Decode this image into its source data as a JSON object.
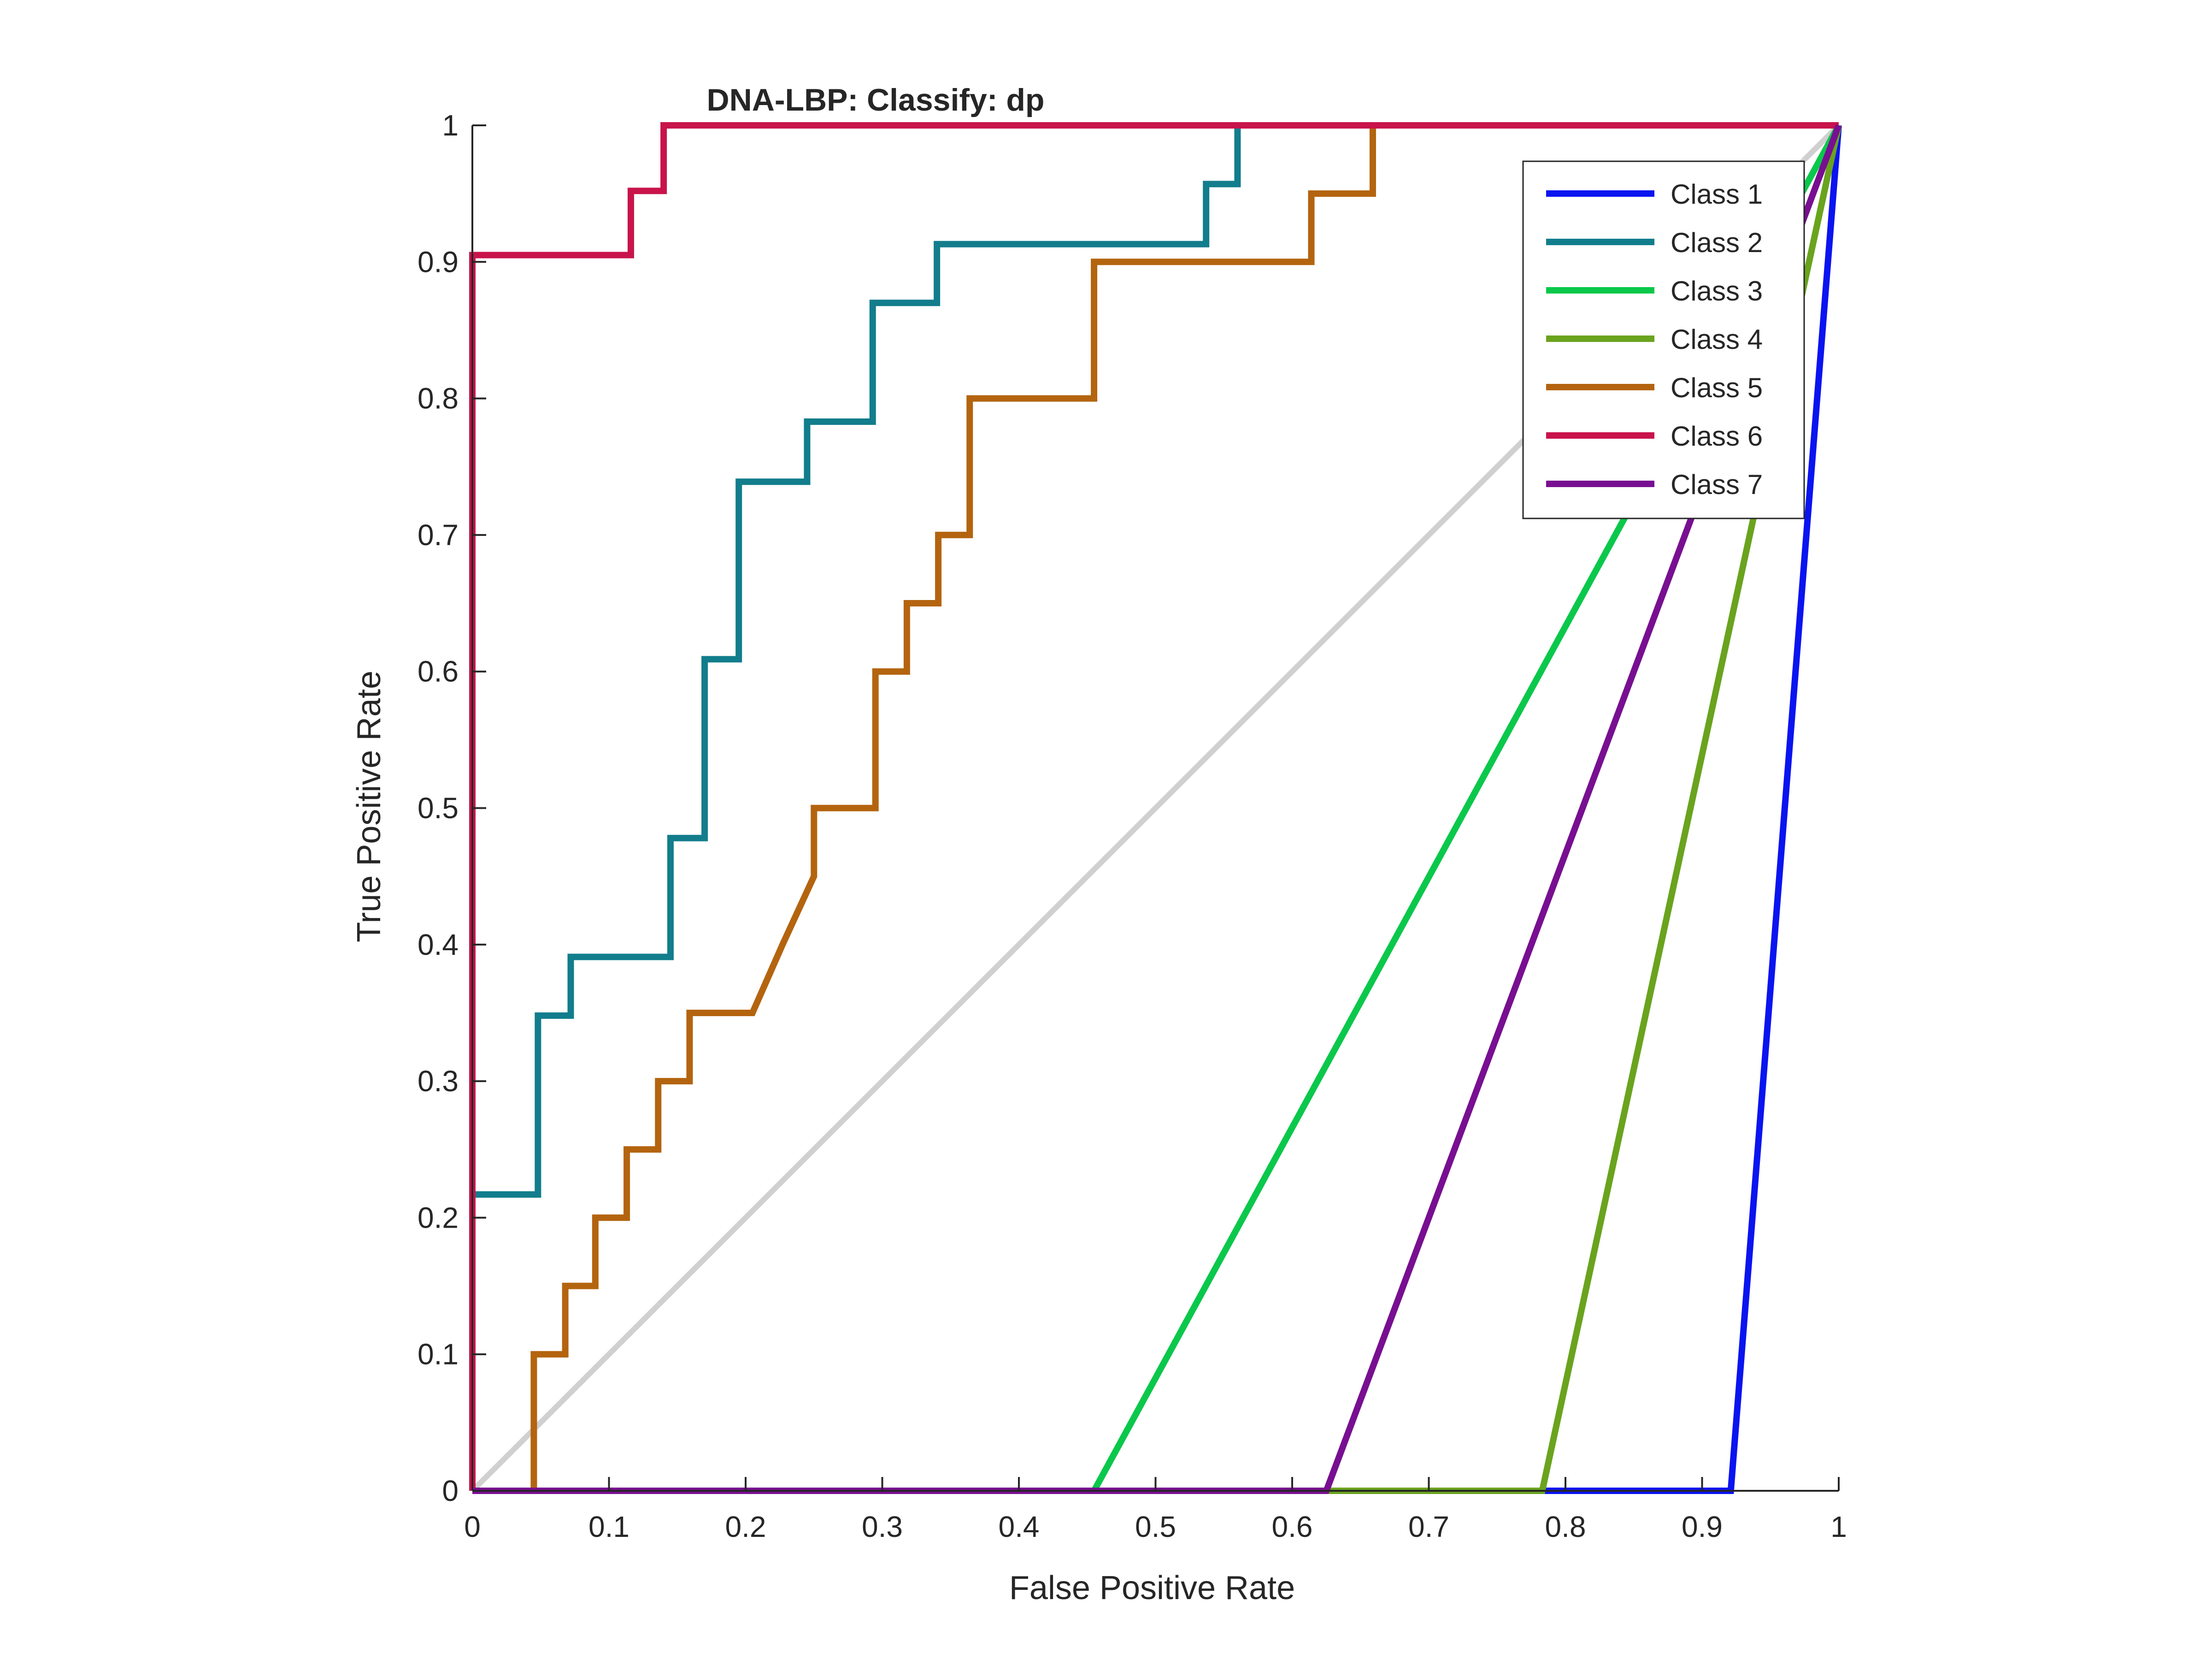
{
  "chart_data": {
    "type": "line",
    "title": "DNA-LBP: Classify: dp",
    "xlabel": "False Positive Rate",
    "ylabel": "True Positive Rate",
    "xlim": [
      0,
      1
    ],
    "ylim": [
      0,
      1
    ],
    "xticks": [
      "0",
      "0.1",
      "0.2",
      "0.3",
      "0.4",
      "0.5",
      "0.6",
      "0.7",
      "0.8",
      "0.9",
      "1"
    ],
    "yticks": [
      "0",
      "0.1",
      "0.2",
      "0.3",
      "0.4",
      "0.5",
      "0.6",
      "0.7",
      "0.8",
      "0.9",
      "1"
    ],
    "grid": false,
    "legend_position": "top-right",
    "reference_line": {
      "x": [
        0,
        1
      ],
      "y": [
        0,
        1
      ],
      "color": "#d0d0d0"
    },
    "series": [
      {
        "name": "Class 1",
        "color": "#0a14f0",
        "x": [
          0,
          0.921,
          1
        ],
        "y": [
          0,
          0,
          1
        ]
      },
      {
        "name": "Class 2",
        "color": "#127d8c",
        "x": [
          0,
          0.048,
          0.048,
          0.072,
          0.072,
          0.145,
          0.145,
          0.17,
          0.17,
          0.195,
          0.195,
          0.245,
          0.245,
          0.293,
          0.293,
          0.34,
          0.34,
          0.537,
          0.537,
          0.56,
          0.56
        ],
        "y": [
          0.217,
          0.217,
          0.348,
          0.348,
          0.391,
          0.391,
          0.478,
          0.478,
          0.609,
          0.609,
          0.739,
          0.739,
          0.783,
          0.783,
          0.87,
          0.87,
          0.913,
          0.913,
          0.957,
          0.957,
          1
        ]
      },
      {
        "name": "Class 3",
        "color": "#0ac84b",
        "x": [
          0,
          0.455,
          1
        ],
        "y": [
          0,
          0,
          1
        ]
      },
      {
        "name": "Class 4",
        "color": "#6aa31e",
        "x": [
          0,
          0.783,
          1
        ],
        "y": [
          0,
          0,
          1
        ]
      },
      {
        "name": "Class 5",
        "color": "#b4640f",
        "x": [
          0.045,
          0.045,
          0.068,
          0.068,
          0.09,
          0.09,
          0.113,
          0.113,
          0.136,
          0.136,
          0.159,
          0.159,
          0.205,
          0.227,
          0.25,
          0.25,
          0.295,
          0.295,
          0.318,
          0.318,
          0.341,
          0.341,
          0.364,
          0.364,
          0.455,
          0.455,
          0.614,
          0.614,
          0.659,
          0.659
        ],
        "y": [
          0,
          0.1,
          0.1,
          0.15,
          0.15,
          0.2,
          0.2,
          0.25,
          0.25,
          0.3,
          0.3,
          0.35,
          0.35,
          0.4,
          0.45,
          0.5,
          0.5,
          0.6,
          0.6,
          0.65,
          0.65,
          0.7,
          0.7,
          0.8,
          0.8,
          0.9,
          0.9,
          0.95,
          0.95,
          1
        ]
      },
      {
        "name": "Class 6",
        "color": "#c8144b",
        "x": [
          0,
          0,
          0.116,
          0.116,
          0.14,
          0.14,
          1
        ],
        "y": [
          0,
          0.905,
          0.905,
          0.952,
          0.952,
          1,
          1
        ]
      },
      {
        "name": "Class 7",
        "color": "#780f91",
        "x": [
          0,
          0.625,
          1
        ],
        "y": [
          0,
          0,
          1
        ]
      }
    ]
  }
}
